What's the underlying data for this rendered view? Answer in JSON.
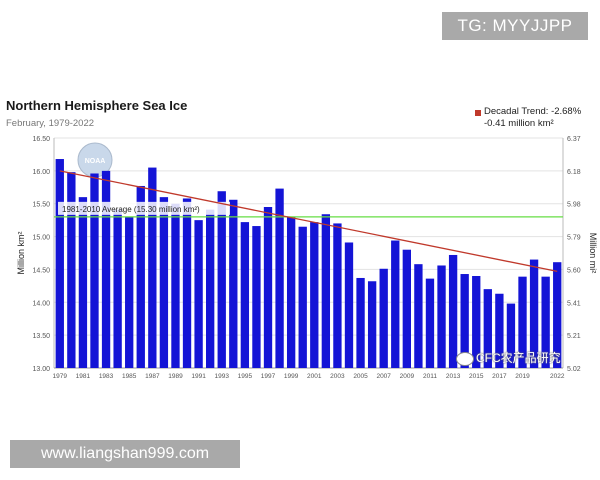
{
  "badges": {
    "top_right": "TG: MYYJJPP",
    "bottom_left": "www.liangshan999.com"
  },
  "watermark": {
    "text": "CFC农产品研究"
  },
  "logo_text": "NOAA",
  "chart_data": {
    "type": "bar",
    "title": "Northern Hemisphere Sea Ice",
    "subtitle": "February, 1979-2022",
    "ylabel_left": "Million km²",
    "ylabel_right": "Million mi²",
    "ylim": [
      13.0,
      16.5
    ],
    "yticks_left": [
      "13.00",
      "13.50",
      "14.00",
      "14.50",
      "15.00",
      "15.50",
      "16.00",
      "16.50"
    ],
    "yticks_right": [
      "5.02",
      "5.21",
      "5.41",
      "5.60",
      "5.79",
      "5.98",
      "6.18",
      "6.37"
    ],
    "xticks": [
      "1979",
      "1981",
      "1983",
      "1985",
      "1987",
      "1989",
      "1991",
      "1993",
      "1995",
      "1997",
      "1999",
      "2001",
      "2003",
      "2005",
      "2007",
      "2009",
      "2011",
      "2013",
      "2015",
      "2017",
      "2019",
      "2022"
    ],
    "categories": [
      "1979",
      "1980",
      "1981",
      "1982",
      "1983",
      "1984",
      "1985",
      "1986",
      "1987",
      "1988",
      "1989",
      "1990",
      "1991",
      "1992",
      "1993",
      "1994",
      "1995",
      "1996",
      "1997",
      "1998",
      "1999",
      "2000",
      "2001",
      "2002",
      "2003",
      "2004",
      "2005",
      "2006",
      "2007",
      "2008",
      "2009",
      "2010",
      "2011",
      "2012",
      "2013",
      "2014",
      "2015",
      "2016",
      "2017",
      "2018",
      "2019",
      "2020",
      "2021",
      "2022"
    ],
    "values": [
      16.18,
      15.98,
      15.6,
      15.96,
      16.0,
      15.41,
      15.3,
      15.77,
      16.05,
      15.6,
      15.5,
      15.58,
      15.25,
      15.41,
      15.69,
      15.56,
      15.22,
      15.16,
      15.45,
      15.73,
      15.3,
      15.15,
      15.22,
      15.34,
      15.2,
      14.91,
      14.37,
      14.32,
      14.51,
      14.94,
      14.8,
      14.58,
      14.36,
      14.56,
      14.72,
      14.43,
      14.4,
      14.2,
      14.13,
      13.98,
      14.39,
      14.65,
      14.39,
      14.61
    ],
    "bar_color": "#1414d6",
    "average": {
      "label": "1981-2010 Average (15.30 million km²)",
      "value": 15.3,
      "color": "#66dd44"
    },
    "trend": {
      "label_line1": "Decadal Trend: -2.68%",
      "label_line2": "-0.41 million km²",
      "start_value": 16.0,
      "end_value": 14.47,
      "color": "#c0392b"
    }
  }
}
